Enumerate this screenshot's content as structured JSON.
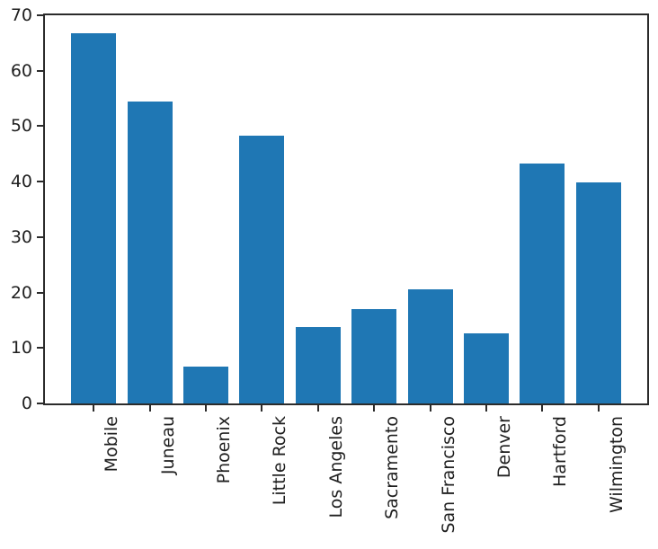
{
  "chart_data": {
    "type": "bar",
    "title": "",
    "xlabel": "",
    "ylabel": "",
    "categories": [
      "Mobile",
      "Juneau",
      "Phoenix",
      "Little Rock",
      "Los Angeles",
      "Sacramento",
      "San Francisco",
      "Denver",
      "Hartford",
      "Wilmington"
    ],
    "values": [
      66.8,
      54.5,
      6.7,
      48.3,
      13.8,
      17.0,
      20.6,
      12.7,
      43.3,
      39.9
    ],
    "ylim": [
      0,
      70
    ],
    "yticks": [
      0,
      10,
      20,
      30,
      40,
      50,
      60,
      70
    ],
    "x_tick_rotation_deg": 90,
    "grid": false,
    "legend_position": "none",
    "colors": {
      "bar": "#1f77b4",
      "axis": "#2b2b2b",
      "text": "#1f1f1f",
      "background": "#ffffff"
    }
  }
}
